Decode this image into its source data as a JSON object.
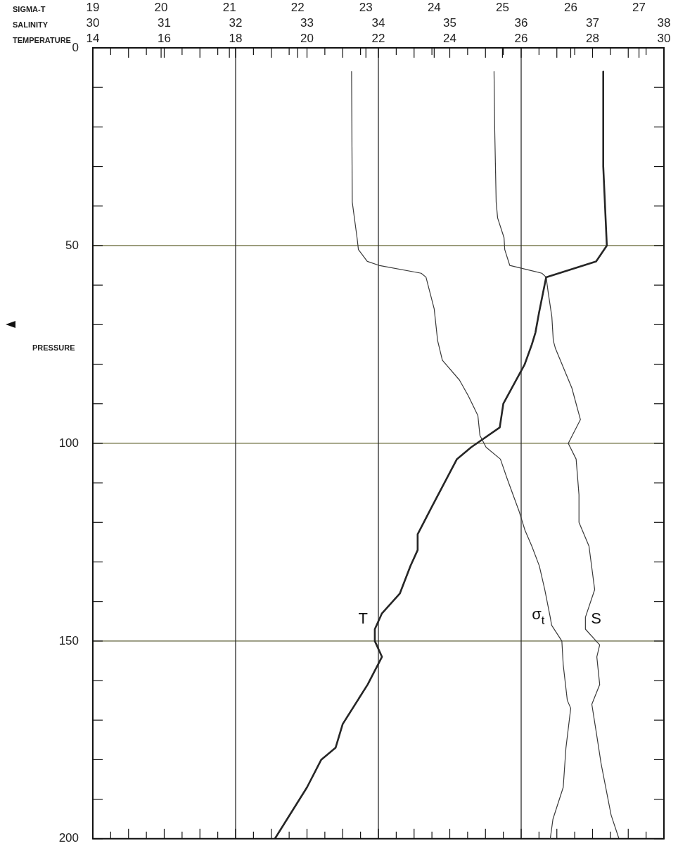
{
  "chart_data": [
    {
      "type": "line",
      "xlabel": "TEMPERATURE",
      "x2label": "SALINITY",
      "ylabel": "PRESSURE",
      "xlim": [
        14,
        30
      ],
      "xticks": [
        14,
        {
          "value": 14.5,
          "label": null
        },
        {
          "value": 15,
          "label": null
        },
        {
          "value": 15.5,
          "label": null
        },
        16,
        {
          "value": 16.5,
          "label": null
        },
        {
          "value": 17,
          "label": null
        },
        {
          "value": 17.5,
          "label": null
        },
        18,
        {
          "value": 18.5,
          "label": null
        },
        {
          "value": 19,
          "label": null
        },
        {
          "value": 19.5,
          "label": null
        },
        20,
        {
          "value": 20.5,
          "label": null
        },
        {
          "value": 21,
          "label": null
        },
        {
          "value": 21.5,
          "label": null
        },
        22,
        {
          "value": 22.5,
          "label": null
        },
        {
          "value": 23,
          "label": null
        },
        {
          "value": 23.5,
          "label": null
        },
        24,
        {
          "value": 24.5,
          "label": null
        },
        {
          "value": 25,
          "label": null
        },
        {
          "value": 25.5,
          "label": null
        },
        26,
        {
          "value": 26.5,
          "label": null
        },
        {
          "value": 27,
          "label": null
        },
        {
          "value": 27.5,
          "label": null
        },
        28,
        {
          "value": 28.5,
          "label": null
        },
        {
          "value": 29,
          "label": null
        },
        {
          "value": 29.5,
          "label": null
        },
        30
      ],
      "x2lim": [
        30,
        38
      ],
      "x2ticks": [
        30,
        31,
        32,
        33,
        34,
        35,
        36,
        37,
        38
      ],
      "ylim": [
        200,
        0
      ],
      "yticks": [
        0,
        {
          "value": 10,
          "label": null
        },
        {
          "value": 20,
          "label": null
        },
        {
          "value": 30,
          "label": null
        },
        {
          "value": 40,
          "label": null
        },
        50,
        {
          "value": 60,
          "label": null
        },
        {
          "value": 70,
          "label": null
        },
        {
          "value": 80,
          "label": null
        },
        {
          "value": 90,
          "label": null
        },
        100,
        {
          "value": 110,
          "label": null
        },
        {
          "value": 120,
          "label": null
        },
        {
          "value": 130,
          "label": null
        },
        {
          "value": 140,
          "label": null
        },
        150,
        {
          "value": 160,
          "label": null
        },
        {
          "value": 170,
          "label": null
        },
        {
          "value": 180,
          "label": null
        },
        {
          "value": 190,
          "label": null
        },
        200
      ],
      "marker": "none",
      "legend": false,
      "ref_lines": [
        {
          "axis": "y",
          "value": 50,
          "color": "#6b6d3c"
        },
        {
          "axis": "y",
          "value": 100,
          "color": "#6b6d3c"
        },
        {
          "axis": "y",
          "value": 150,
          "color": "#5a5c35"
        },
        {
          "axis": "x",
          "value": 18,
          "color": "#2a2a2a"
        },
        {
          "axis": "x",
          "value": 22,
          "color": "#2a2a2a"
        },
        {
          "axis": "x",
          "value": 26,
          "color": "#2a2a2a"
        }
      ],
      "series": [
        {
          "name": "T",
          "color": "#262626",
          "x": [
            28.3,
            28.3,
            28.4,
            28.1,
            26.7,
            26.5,
            26.4,
            26.3,
            26.1,
            25.5,
            25.4,
            24.6,
            24.2,
            23.5,
            23.1,
            23.1,
            22.9,
            22.6,
            22.1,
            21.9,
            21.9,
            22.1,
            21.7,
            21.0,
            20.8,
            20.4,
            20.0,
            19.1
          ],
          "values": [
            6,
            30,
            50,
            54,
            58,
            67,
            72,
            75,
            80,
            90,
            96,
            101,
            104,
            116,
            123,
            127,
            131,
            138,
            143,
            147,
            150,
            154,
            161,
            171,
            177,
            180,
            187,
            200
          ]
        },
        {
          "name": "S",
          "color": "#3a3a3a",
          "axis": "x2",
          "x": [
            35.62,
            35.63,
            35.65,
            35.67,
            35.76,
            35.77,
            35.84,
            36.29,
            36.35,
            36.38,
            36.43,
            36.45,
            36.48,
            36.71,
            36.83,
            36.66,
            36.77,
            36.81,
            36.81,
            36.95,
            37.03,
            36.9,
            36.9,
            37.1,
            37.06,
            37.1,
            36.99,
            37.06,
            37.12,
            37.26,
            37.37
          ],
          "values": [
            6,
            21,
            39,
            43,
            48,
            51,
            55,
            57,
            58,
            62,
            68,
            74,
            76,
            86,
            94,
            100,
            104,
            113,
            120,
            126,
            137,
            144,
            147,
            151,
            154,
            161,
            166,
            174,
            181,
            194,
            200
          ]
        }
      ]
    },
    {
      "type": "line",
      "xlabel": "SIGMA-T",
      "xlim": [
        19,
        27
      ],
      "xticks": [
        19,
        20,
        21,
        22,
        23,
        24,
        25,
        26,
        27
      ],
      "ylim": [
        200,
        0
      ],
      "tick_labels": "x",
      "marker": "none",
      "legend": false,
      "series": [
        {
          "name": "σ$_{t}$",
          "color": "#3a3a3a",
          "x": [
            22.79,
            22.8,
            22.87,
            22.89,
            23.02,
            23.19,
            23.81,
            23.88,
            23.94,
            24.0,
            24.05,
            24.12,
            24.37,
            24.5,
            24.64,
            24.67,
            24.76,
            24.97,
            25.07,
            25.24,
            25.33,
            25.43,
            25.54,
            25.62,
            25.7,
            25.72,
            25.87,
            25.89,
            25.95,
            26.0,
            25.93,
            25.89,
            25.74,
            25.7
          ],
          "values": [
            6,
            39,
            48,
            51,
            54,
            55,
            57,
            58,
            62,
            66,
            74,
            79,
            84,
            88,
            93,
            98,
            101,
            104,
            109,
            117,
            122,
            126,
            131,
            137,
            144,
            146,
            150,
            156,
            165,
            167,
            177,
            187,
            195,
            200
          ]
        }
      ]
    }
  ]
}
